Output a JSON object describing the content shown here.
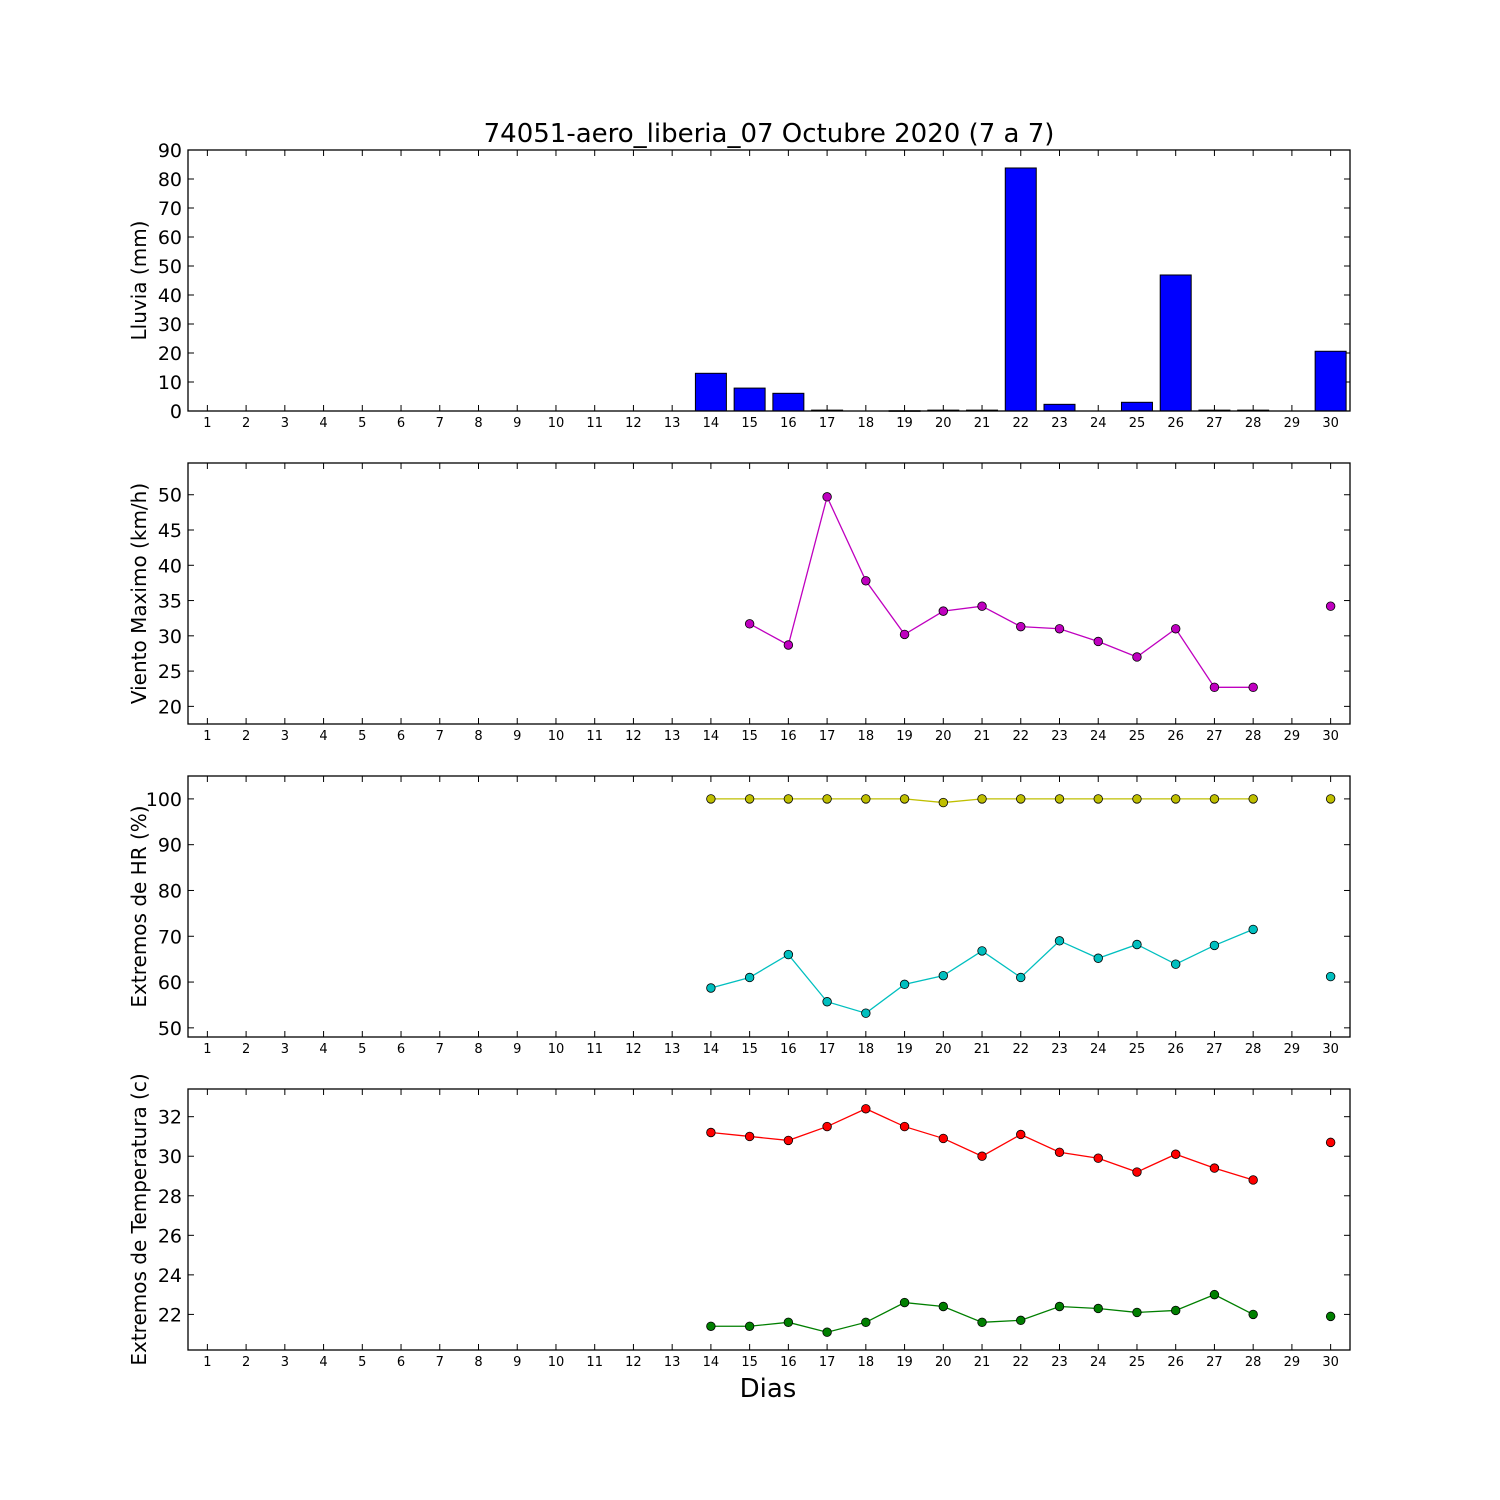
{
  "title": "74051-aero_liberia_07 Octubre 2020  (7 a 7)",
  "xlabel": "Dias",
  "x_ticks": [
    1,
    2,
    3,
    4,
    5,
    6,
    7,
    8,
    9,
    10,
    11,
    12,
    13,
    14,
    15,
    16,
    17,
    18,
    19,
    20,
    21,
    22,
    23,
    24,
    25,
    26,
    27,
    28,
    29,
    30
  ],
  "chart_data": [
    {
      "type": "bar",
      "ylabel": "Lluvia (mm)",
      "ylim": [
        0,
        90
      ],
      "yticks": [
        0,
        10,
        20,
        30,
        40,
        50,
        60,
        70,
        80,
        90
      ],
      "xlim": [
        0.5,
        30.5
      ],
      "series": [
        {
          "color": "#0000ff",
          "x": [
            14,
            15,
            16,
            17,
            19,
            20,
            21,
            22,
            23,
            25,
            26,
            27,
            28,
            30
          ],
          "values": [
            13.0,
            7.9,
            6.1,
            0.3,
            0.1,
            0.3,
            0.3,
            83.8,
            2.3,
            3.0,
            46.9,
            0.3,
            0.3,
            20.6
          ]
        }
      ]
    },
    {
      "type": "line",
      "ylabel": "Viento Maximo (km/h)",
      "ylim": [
        17.5,
        54.5
      ],
      "yticks": [
        20,
        25,
        30,
        35,
        40,
        45,
        50
      ],
      "xlim": [
        0.5,
        30.5
      ],
      "series": [
        {
          "color": "#bf00bf",
          "x": [
            15,
            16,
            17,
            18,
            19,
            20,
            21,
            22,
            23,
            24,
            25,
            26,
            27,
            28,
            null,
            30
          ],
          "y": [
            31.7,
            28.7,
            49.7,
            37.8,
            30.2,
            33.5,
            34.2,
            31.3,
            31.0,
            29.2,
            27.0,
            31.0,
            22.7,
            22.7,
            null,
            34.2
          ]
        }
      ]
    },
    {
      "type": "line",
      "ylabel": "Extremos de HR (%)",
      "ylim": [
        48,
        105
      ],
      "yticks": [
        50,
        60,
        70,
        80,
        90,
        100
      ],
      "xlim": [
        0.5,
        30.5
      ],
      "series": [
        {
          "color": "#bfbf00",
          "x": [
            14,
            15,
            16,
            17,
            18,
            19,
            20,
            21,
            22,
            23,
            24,
            25,
            26,
            27,
            28,
            null,
            30
          ],
          "y": [
            100,
            100,
            100,
            100,
            100,
            100,
            99.2,
            100,
            100,
            100,
            100,
            100,
            100,
            100,
            100,
            null,
            100
          ]
        },
        {
          "color": "#00bfbf",
          "x": [
            14,
            15,
            16,
            17,
            18,
            19,
            20,
            21,
            22,
            23,
            24,
            25,
            26,
            27,
            28,
            null,
            30
          ],
          "y": [
            58.7,
            61.0,
            66.0,
            55.7,
            53.2,
            59.5,
            61.4,
            66.8,
            61.0,
            69.0,
            65.2,
            68.2,
            63.9,
            68.0,
            71.5,
            null,
            61.2
          ]
        }
      ]
    },
    {
      "type": "line",
      "ylabel": "Extremos de Temperatura (c)",
      "ylim": [
        20.2,
        33.4
      ],
      "yticks": [
        22,
        24,
        26,
        28,
        30,
        32
      ],
      "xlim": [
        0.5,
        30.5
      ],
      "series": [
        {
          "color": "#ff0000",
          "x": [
            14,
            15,
            16,
            17,
            18,
            19,
            20,
            21,
            22,
            23,
            24,
            25,
            26,
            27,
            28,
            null,
            30
          ],
          "y": [
            31.2,
            31.0,
            30.8,
            31.5,
            32.4,
            31.5,
            30.9,
            30.0,
            31.1,
            30.2,
            29.9,
            29.2,
            30.1,
            29.4,
            28.8,
            null,
            30.7
          ]
        },
        {
          "color": "#007f00",
          "x": [
            14,
            15,
            16,
            17,
            18,
            19,
            20,
            21,
            22,
            23,
            24,
            25,
            26,
            27,
            28,
            null,
            30
          ],
          "y": [
            21.4,
            21.4,
            21.6,
            21.1,
            21.6,
            22.6,
            22.4,
            21.6,
            21.7,
            22.4,
            22.3,
            22.1,
            22.2,
            23.0,
            22.0,
            null,
            21.9
          ]
        }
      ]
    }
  ]
}
